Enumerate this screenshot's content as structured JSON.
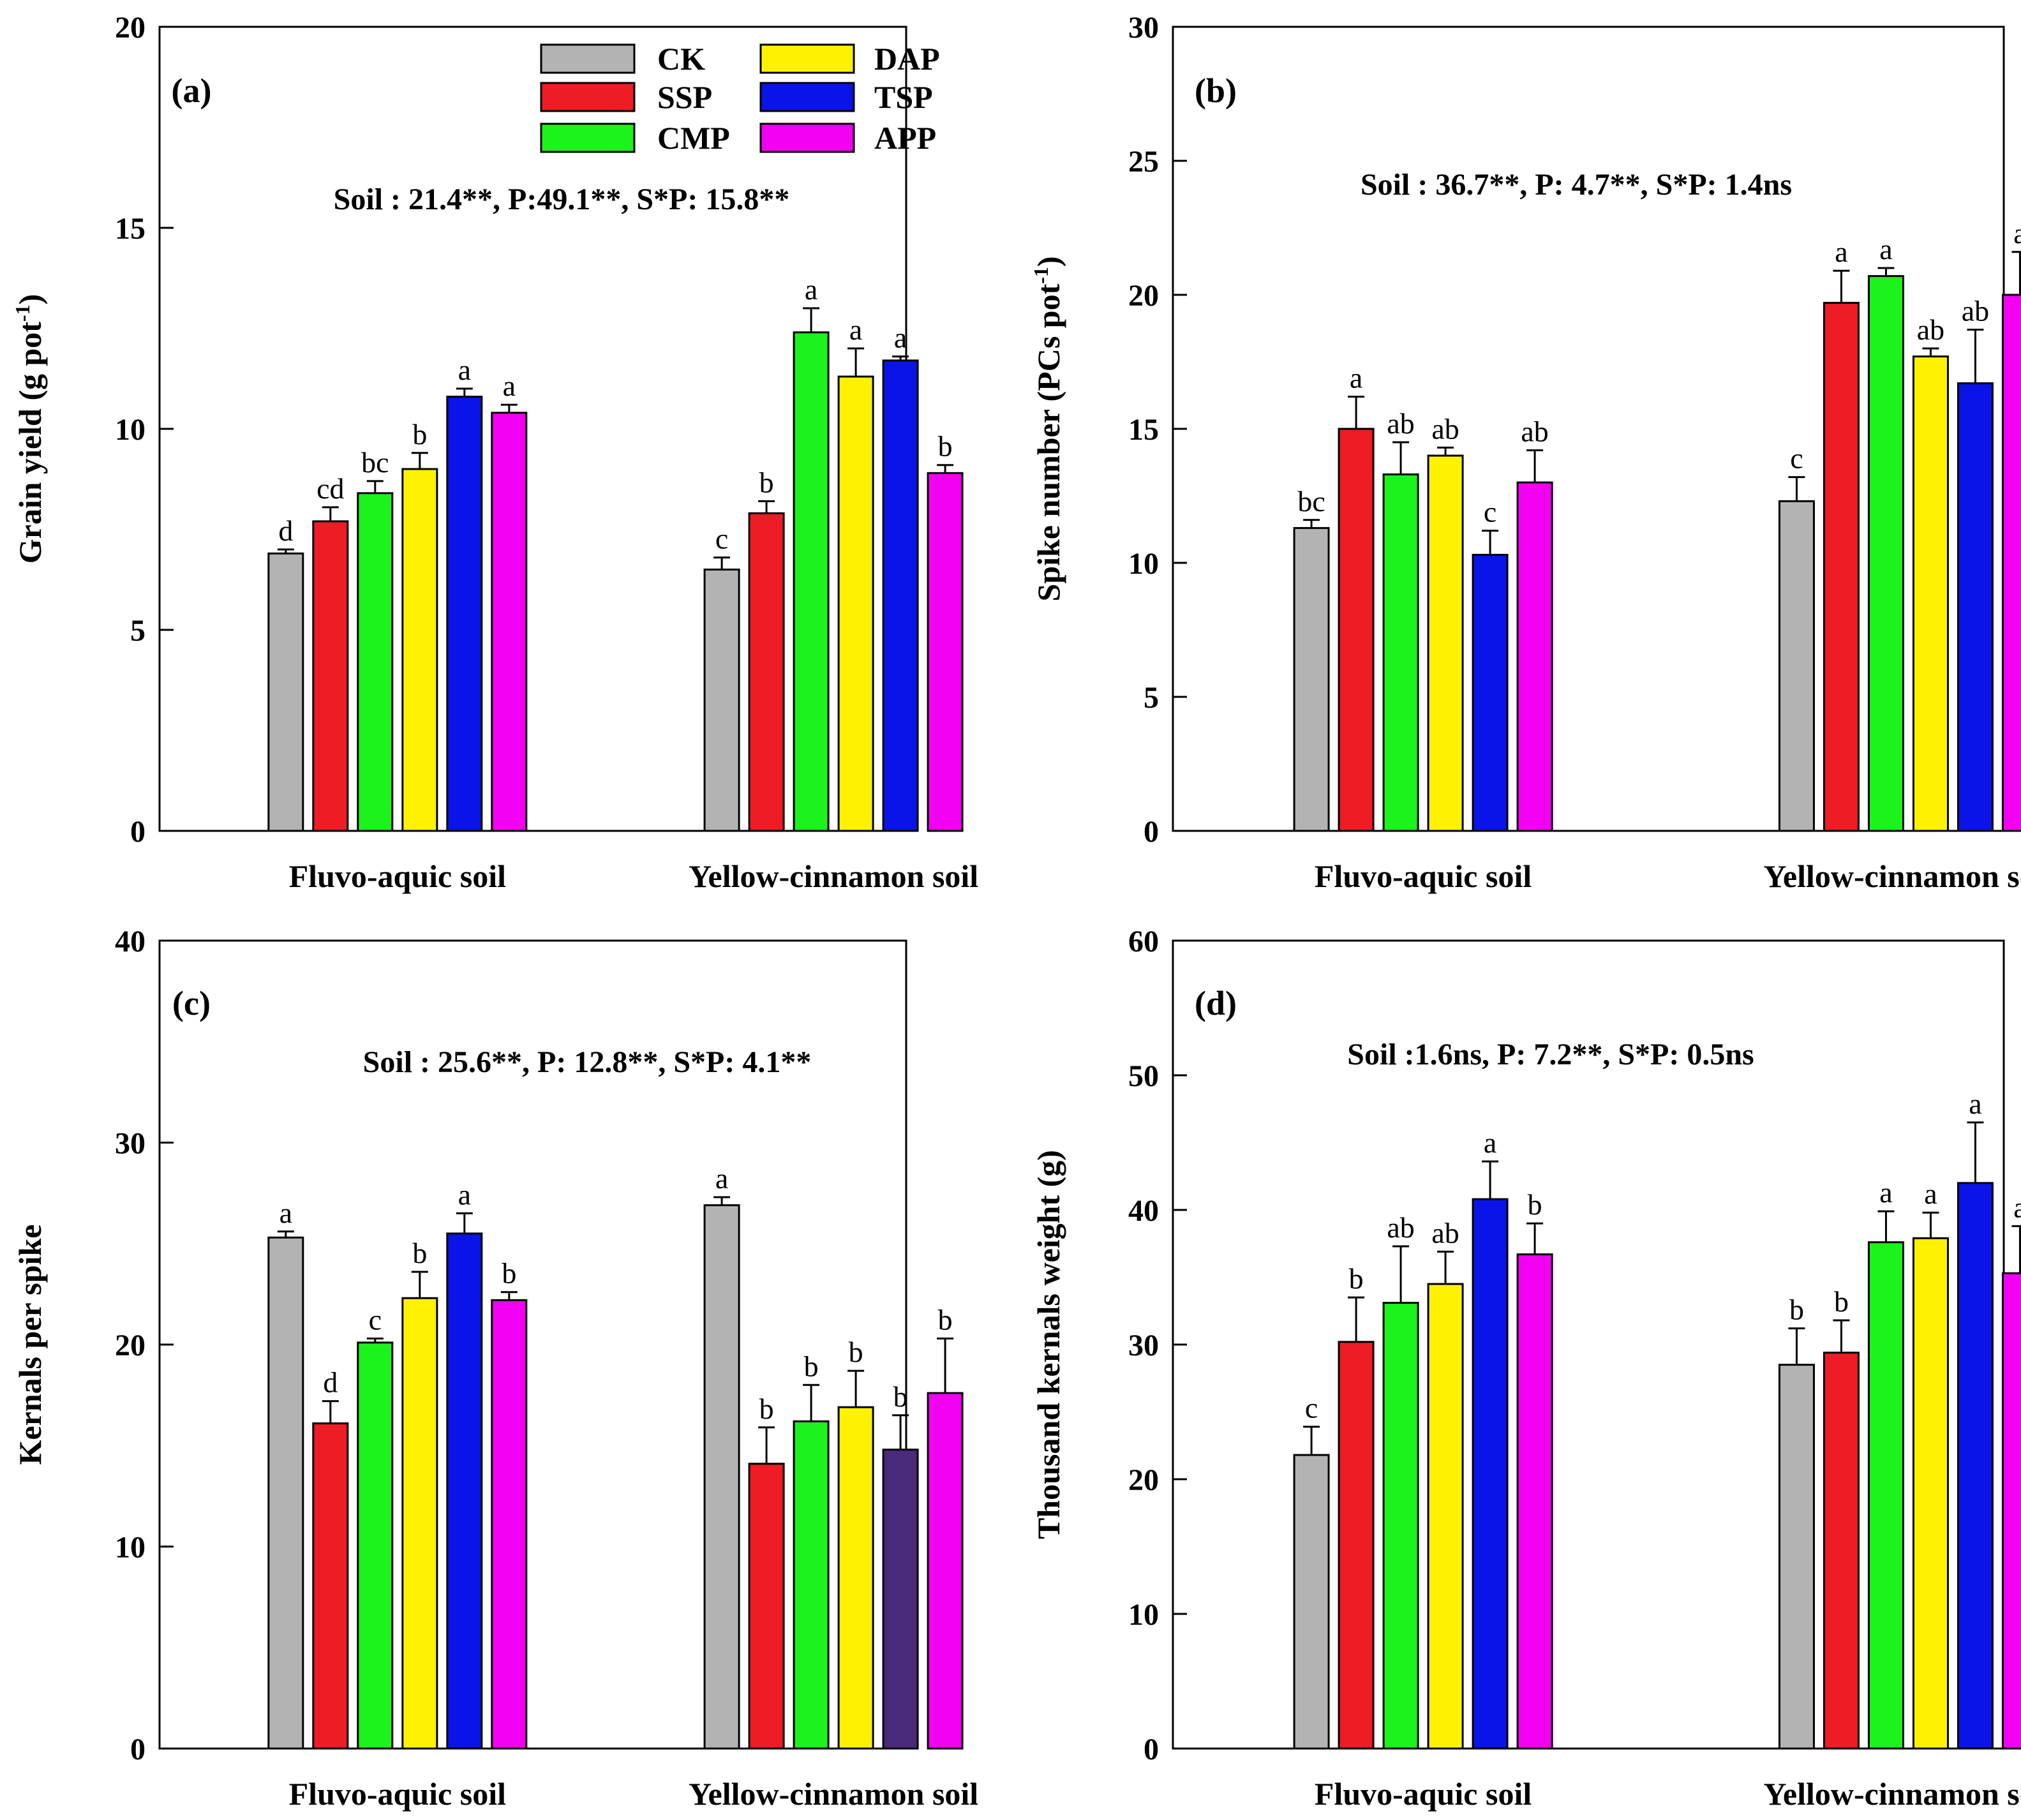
{
  "colors": {
    "CK": "#b3b3b3",
    "SSP": "#ee1c24",
    "CMP": "#1cf21c",
    "DAP": "#fff200",
    "TSP": "#0a14e6",
    "APP": "#f200f2",
    "TSP_dark": "#4a2a7a"
  },
  "chart_data": [
    {
      "id": "a",
      "type": "bar",
      "panel_label": "(a)",
      "ylabel": "Grain yield (g pot",
      "ylabel_sup": "-1",
      "ylabel_close": ")",
      "ylim": [
        0,
        20
      ],
      "yticks": [
        "0",
        "5",
        "10",
        "15",
        "20"
      ],
      "categories": [
        "Fluvo-aquic soil",
        "Yellow-cinnamon soil"
      ],
      "stats": "Soil : 21.4**, P:49.1**, S*P: 15.8**",
      "legend": [
        "CK",
        "SSP",
        "CMP",
        "DAP",
        "TSP",
        "APP"
      ],
      "series": [
        {
          "name": "CK",
          "values": [
            6.9,
            6.5
          ],
          "errors": [
            0.1,
            0.3
          ],
          "letters": [
            "d",
            "c"
          ]
        },
        {
          "name": "SSP",
          "values": [
            7.7,
            7.9
          ],
          "errors": [
            0.35,
            0.3
          ],
          "letters": [
            "cd",
            "b"
          ]
        },
        {
          "name": "CMP",
          "values": [
            8.4,
            12.4
          ],
          "errors": [
            0.3,
            0.6
          ],
          "letters": [
            "bc",
            "a"
          ]
        },
        {
          "name": "DAP",
          "values": [
            9.0,
            11.3
          ],
          "errors": [
            0.4,
            0.7
          ],
          "letters": [
            "b",
            "a"
          ]
        },
        {
          "name": "TSP",
          "values": [
            10.8,
            11.7
          ],
          "errors": [
            0.2,
            0.1
          ],
          "letters": [
            "a",
            "a"
          ]
        },
        {
          "name": "APP",
          "values": [
            10.4,
            8.9
          ],
          "errors": [
            0.2,
            0.2
          ],
          "letters": [
            "a",
            "b"
          ]
        }
      ]
    },
    {
      "id": "b",
      "type": "bar",
      "panel_label": "(b)",
      "ylabel": "Spike number (PCs pot",
      "ylabel_sup": "-1",
      "ylabel_close": ")",
      "ylim": [
        0,
        30
      ],
      "yticks": [
        "0",
        "5",
        "10",
        "15",
        "20",
        "25",
        "30"
      ],
      "categories": [
        "Fluvo-aquic soil",
        "Yellow-cinnamon soil"
      ],
      "stats": "Soil : 36.7**, P: 4.7**, S*P: 1.4ns",
      "series": [
        {
          "name": "CK",
          "values": [
            11.3,
            12.3
          ],
          "errors": [
            0.3,
            0.9
          ],
          "letters": [
            "bc",
            "c"
          ]
        },
        {
          "name": "SSP",
          "values": [
            15.0,
            19.7
          ],
          "errors": [
            1.2,
            1.2
          ],
          "letters": [
            "a",
            "a"
          ]
        },
        {
          "name": "CMP",
          "values": [
            13.3,
            20.7
          ],
          "errors": [
            1.2,
            0.3
          ],
          "letters": [
            "ab",
            "a"
          ]
        },
        {
          "name": "DAP",
          "values": [
            14.0,
            17.7
          ],
          "errors": [
            0.3,
            0.3
          ],
          "letters": [
            "ab",
            "ab"
          ]
        },
        {
          "name": "TSP",
          "values": [
            10.3,
            16.7
          ],
          "errors": [
            0.9,
            2.0
          ],
          "letters": [
            "c",
            "ab"
          ]
        },
        {
          "name": "APP",
          "values": [
            13.0,
            20.0
          ],
          "errors": [
            1.2,
            1.6
          ],
          "letters": [
            "ab",
            "a"
          ]
        }
      ]
    },
    {
      "id": "c",
      "type": "bar",
      "panel_label": "(c)",
      "ylabel": "Kernals per spike",
      "ylim": [
        0,
        40
      ],
      "yticks": [
        "0",
        "10",
        "20",
        "30",
        "40"
      ],
      "categories": [
        "Fluvo-aquic soil",
        "Yellow-cinnamon soil"
      ],
      "stats": "Soil : 25.6**, P: 12.8**, S*P: 4.1**",
      "series": [
        {
          "name": "CK",
          "values": [
            25.3,
            26.9
          ],
          "errors": [
            0.3,
            0.4
          ],
          "letters": [
            "a",
            "a"
          ]
        },
        {
          "name": "SSP",
          "values": [
            16.1,
            14.1
          ],
          "errors": [
            1.1,
            1.8
          ],
          "letters": [
            "d",
            "b"
          ]
        },
        {
          "name": "CMP",
          "values": [
            20.1,
            16.2
          ],
          "errors": [
            0.2,
            1.8
          ],
          "letters": [
            "c",
            "b"
          ]
        },
        {
          "name": "DAP",
          "values": [
            22.3,
            16.9
          ],
          "errors": [
            1.3,
            1.8
          ],
          "letters": [
            "b",
            "b"
          ]
        },
        {
          "name": "TSP",
          "values": [
            25.5,
            14.8
          ],
          "errors": [
            1.0,
            1.7
          ],
          "letters": [
            "a",
            "b"
          ]
        },
        {
          "name": "APP",
          "values": [
            22.2,
            17.6
          ],
          "errors": [
            0.4,
            2.7
          ],
          "letters": [
            "b",
            "b"
          ]
        }
      ]
    },
    {
      "id": "d",
      "type": "bar",
      "panel_label": "(d)",
      "ylabel": "Thousand kernals weight (g)",
      "ylim": [
        0,
        60
      ],
      "yticks": [
        "0",
        "10",
        "20",
        "30",
        "40",
        "50",
        "60"
      ],
      "categories": [
        "Fluvo-aquic soil",
        "Yellow-cinnamon soil"
      ],
      "stats": "Soil :1.6ns, P: 7.2**, S*P: 0.5ns",
      "series": [
        {
          "name": "CK",
          "values": [
            21.8,
            28.5
          ],
          "errors": [
            2.1,
            2.7
          ],
          "letters": [
            "c",
            "b"
          ]
        },
        {
          "name": "SSP",
          "values": [
            30.2,
            29.4
          ],
          "errors": [
            3.3,
            2.4
          ],
          "letters": [
            "b",
            "b"
          ]
        },
        {
          "name": "CMP",
          "values": [
            33.1,
            37.6
          ],
          "errors": [
            4.2,
            2.3
          ],
          "letters": [
            "ab",
            "a"
          ]
        },
        {
          "name": "DAP",
          "values": [
            34.5,
            37.9
          ],
          "errors": [
            2.4,
            1.9
          ],
          "letters": [
            "ab",
            "a"
          ]
        },
        {
          "name": "TSP",
          "values": [
            40.8,
            42.0
          ],
          "errors": [
            2.8,
            4.5
          ],
          "letters": [
            "a",
            "a"
          ]
        },
        {
          "name": "APP",
          "values": [
            36.7,
            35.3
          ],
          "errors": [
            2.3,
            3.5
          ],
          "letters": [
            "b",
            "a"
          ]
        }
      ]
    }
  ]
}
